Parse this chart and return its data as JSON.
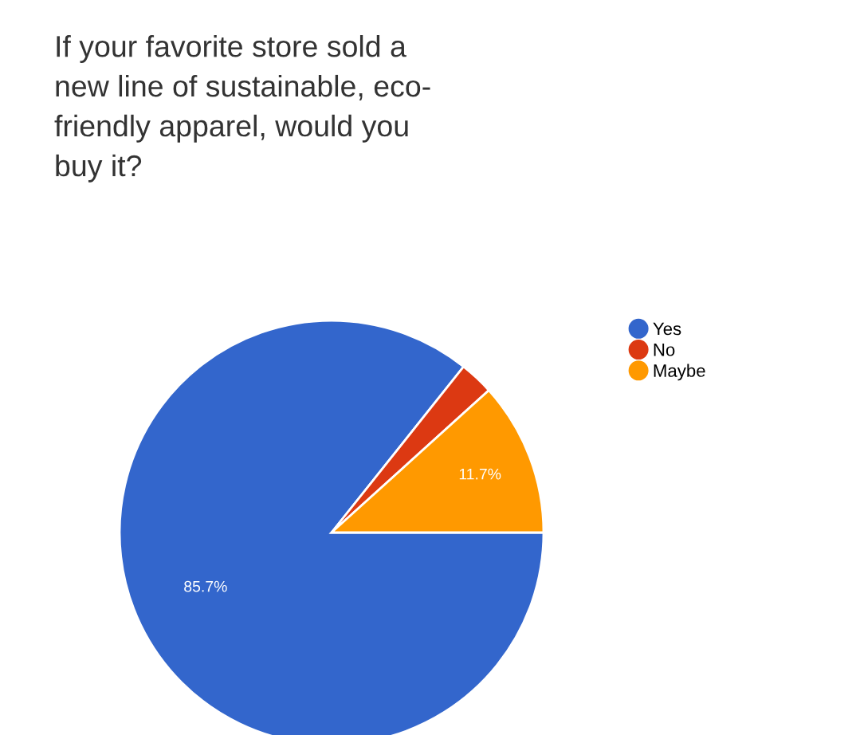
{
  "chart_data": {
    "type": "pie",
    "title": "If your favorite store sold a\nnew line of sustainable, eco-\nfriendly apparel, would you\nbuy it?",
    "categories": [
      "Yes",
      "No",
      "Maybe"
    ],
    "values": [
      85.7,
      2.6,
      11.7
    ],
    "colors": [
      "#3366cc",
      "#dc3912",
      "#ff9900"
    ],
    "value_labels": [
      "85.7%",
      null,
      "11.7%"
    ],
    "legend": "right"
  }
}
